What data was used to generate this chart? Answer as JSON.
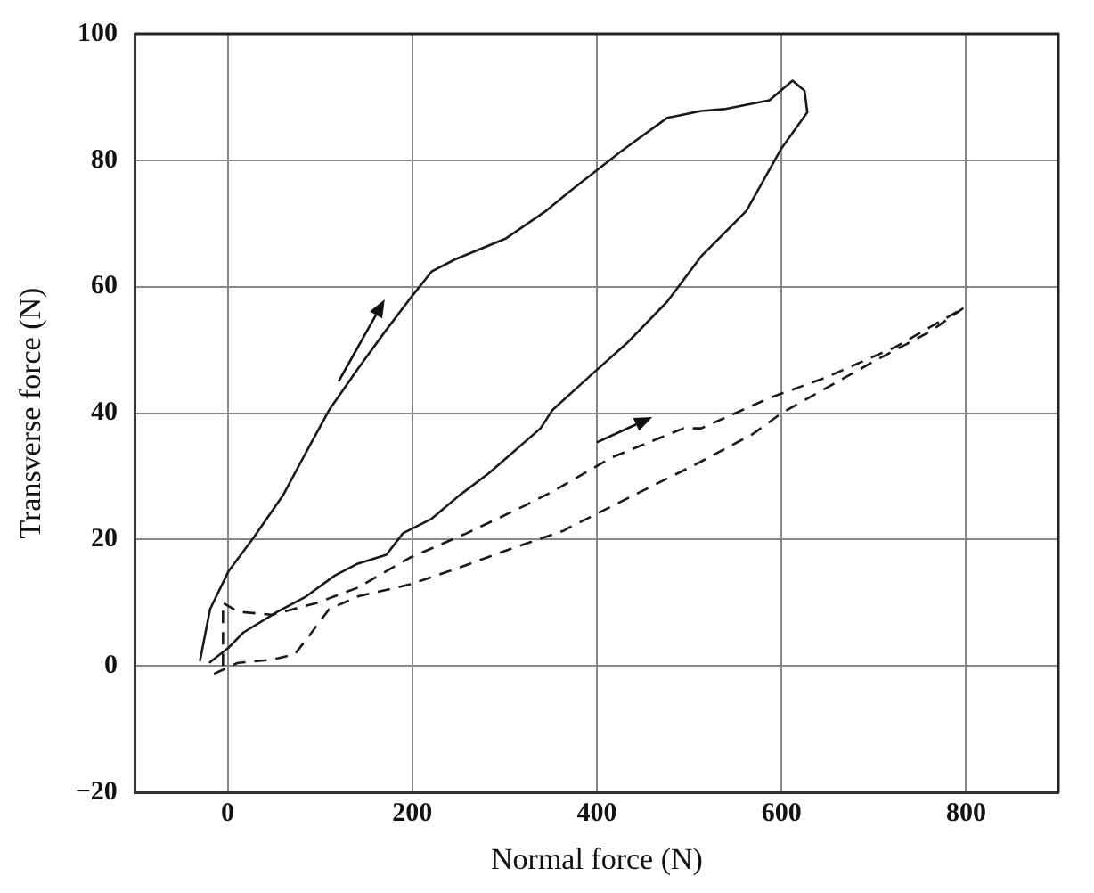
{
  "chart_data": {
    "type": "line",
    "xlabel": "Normal force (N)",
    "ylabel": "Transverse force (N)",
    "xlim": [
      -100,
      900
    ],
    "ylim": [
      -20,
      100
    ],
    "xticks": [
      0,
      200,
      400,
      600,
      800
    ],
    "yticks": [
      -20,
      0,
      20,
      40,
      60,
      80,
      100
    ],
    "grid": true,
    "legend": false,
    "marker": "none",
    "series": [
      {
        "color": "#1a1a1a",
        "line_style": "solid",
        "x": [
          -30,
          -19,
          1,
          29,
          60,
          82,
          110,
          141,
          171,
          197,
          221,
          246,
          301,
          345,
          370,
          426,
          476,
          513,
          538,
          587,
          612,
          625,
          628,
          600,
          580,
          562,
          513,
          476,
          432,
          395,
          352,
          339,
          283,
          252,
          221,
          190,
          172,
          141,
          116,
          85,
          54,
          17,
          1,
          -20
        ],
        "values": [
          0.8,
          9,
          15,
          20.5,
          27,
          33,
          40.5,
          47,
          53,
          58,
          62.4,
          64.3,
          67.6,
          72,
          75,
          81.4,
          86.7,
          87.8,
          88.1,
          89.5,
          92.6,
          91,
          87.6,
          81.9,
          76.7,
          72,
          64.8,
          57.6,
          51,
          46.2,
          40.5,
          37.6,
          30.5,
          27.1,
          23.3,
          21,
          17.6,
          16.2,
          14.3,
          11,
          8.6,
          5.3,
          2.9,
          0.5
        ]
      },
      {
        "color": "#1a1a1a",
        "line_style": "dashed",
        "x": [
          -5,
          -5,
          11,
          48,
          97,
          141,
          197,
          259,
          321,
          352,
          416,
          494,
          513,
          587,
          649,
          724,
          798,
          761,
          699,
          600,
          569,
          507,
          370,
          364,
          308,
          246,
          197,
          141,
          110,
          91,
          73,
          48,
          11,
          -17
        ],
        "values": [
          0,
          10,
          8.6,
          8.1,
          10,
          12.4,
          17.1,
          21,
          25.3,
          27.6,
          33,
          37.6,
          37.6,
          42.4,
          45.7,
          50.5,
          56.7,
          52.9,
          48.1,
          40,
          36.7,
          31.9,
          21.9,
          21.4,
          18.6,
          15.3,
          12.9,
          11,
          9,
          5.3,
          1.9,
          1,
          0.5,
          -1.4
        ]
      }
    ]
  }
}
